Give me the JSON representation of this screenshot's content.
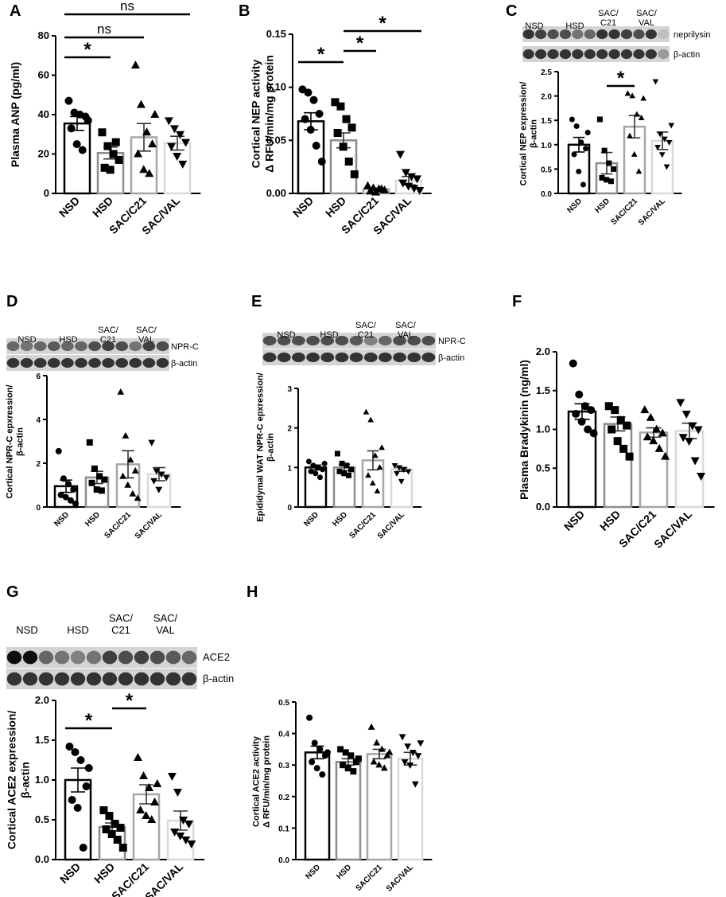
{
  "categories": [
    "NSD",
    "HSD",
    "SAC/C21",
    "SAC/VAL"
  ],
  "bar_colors": [
    "#000000",
    "#8c8c8c",
    "#a6a6a6",
    "#d9d9d9"
  ],
  "marker_shapes": [
    "circle",
    "square",
    "triangle-up",
    "triangle-down"
  ],
  "blot_headers": {
    "C": [
      "NSD",
      "HSD",
      "SAC/|C21",
      "SAC/|VAL"
    ],
    "D": [
      "NSD",
      "HSD",
      "SAC/|C21",
      "SAC/|VAL"
    ],
    "E": [
      "NSD",
      "HSD",
      "SAC/|C21",
      "SAC/|VAL"
    ],
    "G": [
      "NSD",
      "HSD",
      "SAC/|C21",
      "SAC/|VAL"
    ]
  },
  "blot_bands": {
    "C": [
      "neprilysin",
      "β-actin"
    ],
    "D": [
      "NPR-C",
      "β-actin"
    ],
    "E": [
      "NPR-C",
      "β-actin"
    ],
    "G": [
      "ACE2",
      "β-actin"
    ]
  },
  "chart_data": [
    {
      "panel": "A",
      "type": "bar",
      "ylabel": "Plasma ANP (pg/ml)",
      "ylim": [
        0,
        80
      ],
      "yticks": [
        0,
        20,
        40,
        60,
        80
      ],
      "means": [
        35.5,
        20.5,
        28.5,
        25.5
      ],
      "sem": [
        3.5,
        3,
        7,
        3.5
      ],
      "points": [
        [
          47,
          41,
          40,
          39,
          33,
          25,
          22,
          37
        ],
        [
          31,
          24,
          20,
          17,
          13,
          12,
          26
        ],
        [
          65,
          45,
          31,
          25,
          20,
          12,
          10,
          40
        ],
        [
          37,
          33,
          30,
          26,
          24,
          19,
          15
        ]
      ],
      "significance": [
        {
          "from": 0,
          "to": 1,
          "label": "*"
        },
        {
          "from": 0,
          "to": 2,
          "label": "ns"
        },
        {
          "from": 0,
          "to": 3,
          "label": "ns"
        }
      ]
    },
    {
      "panel": "B",
      "type": "bar",
      "ylabel": "Cortical NEP activity|Δ RFU/min/mg protein",
      "ylim": [
        0,
        0.15
      ],
      "yticks": [
        0,
        0.05,
        0.1,
        0.15
      ],
      "tick_format": "0.00",
      "means": [
        0.068,
        0.05,
        0.004,
        0.012
      ],
      "sem": [
        0.008,
        0.007,
        0.001,
        0.004
      ],
      "points": [
        [
          0.098,
          0.095,
          0.088,
          0.075,
          0.07,
          0.06,
          0.045,
          0.03
        ],
        [
          0.086,
          0.082,
          0.07,
          0.062,
          0.057,
          0.044,
          0.03,
          0.018
        ],
        [
          0.007,
          0.005,
          0.004,
          0.003,
          0.002,
          0.001,
          0.004
        ],
        [
          0.037,
          0.02,
          0.016,
          0.014,
          0.01,
          0.007,
          0.005,
          0.003
        ]
      ],
      "significance": [
        {
          "from": 0,
          "to": 1,
          "label": "*"
        },
        {
          "from": 1,
          "to": 2,
          "label": "*"
        },
        {
          "from": 1,
          "to": 3,
          "label": "*"
        }
      ]
    },
    {
      "panel": "C",
      "type": "bar",
      "ylabel": "Cortical NEP expression/|β-actin",
      "ylim": [
        0,
        2.5
      ],
      "yticks": [
        0,
        0.5,
        1,
        1.5,
        2,
        2.5
      ],
      "tick_format": "0.0",
      "means": [
        1.0,
        0.62,
        1.37,
        1.08
      ],
      "sem": [
        0.15,
        0.22,
        0.23,
        0.18
      ],
      "points": [
        [
          1.52,
          1.38,
          1.05,
          0.92,
          0.8,
          0.45,
          0.18,
          1.25
        ],
        [
          1.52,
          0.88,
          0.62,
          0.5,
          0.32,
          0.28,
          0.25
        ],
        [
          2.05,
          2.0,
          1.62,
          1.55,
          1.18,
          0.8,
          0.45,
          1.95
        ],
        [
          2.3,
          1.22,
          1.12,
          1.05,
          0.95,
          0.8,
          0.55,
          1.4
        ]
      ],
      "significance": [
        {
          "from": 1,
          "to": 2,
          "label": "*"
        }
      ]
    },
    {
      "panel": "D",
      "type": "bar",
      "ylabel": "Cortical NPR-C epxression/|β-actin",
      "ylim": [
        0,
        6
      ],
      "yticks": [
        0,
        2,
        4,
        6
      ],
      "means": [
        0.95,
        1.35,
        1.95,
        1.5
      ],
      "sem": [
        0.28,
        0.28,
        0.62,
        0.3
      ],
      "points": [
        [
          2.55,
          1.3,
          1.05,
          0.8,
          0.55,
          0.45,
          0.3,
          0.15
        ],
        [
          2.95,
          1.75,
          1.4,
          1.25,
          1.1,
          0.8,
          0.75
        ],
        [
          5.25,
          3.25,
          2.15,
          1.65,
          1.4,
          1.0,
          0.6,
          0.4
        ],
        [
          2.95,
          1.65,
          1.5,
          1.35,
          1.2,
          0.8
        ]
      ],
      "significance": []
    },
    {
      "panel": "E",
      "type": "bar",
      "ylabel": "Epididymal WAT NPR-C epxression/|β-actin",
      "ylim": [
        0,
        3
      ],
      "yticks": [
        0,
        1,
        2,
        3
      ],
      "means": [
        1.0,
        1.0,
        1.18,
        0.95
      ],
      "sem": [
        0.06,
        0.08,
        0.24,
        0.05
      ],
      "points": [
        [
          1.15,
          1.05,
          1.0,
          0.95,
          0.9,
          0.85,
          0.75,
          1.1
        ],
        [
          1.35,
          1.1,
          1.05,
          0.95,
          0.9,
          0.85,
          0.8
        ],
        [
          2.4,
          2.2,
          1.3,
          1.0,
          0.8,
          0.6,
          0.4,
          1.5
        ],
        [
          1.05,
          1.0,
          0.95,
          0.9,
          0.85,
          0.65
        ]
      ],
      "significance": []
    },
    {
      "panel": "F",
      "type": "bar",
      "ylabel": "Plasma Bradykinin (ng/ml)",
      "ylim": [
        0,
        2.0
      ],
      "yticks": [
        0,
        0.5,
        1,
        1.5,
        2
      ],
      "tick_format": "0.0",
      "means": [
        1.23,
        1.07,
        0.96,
        0.98
      ],
      "sem": [
        0.1,
        0.09,
        0.06,
        0.1
      ],
      "points": [
        [
          1.85,
          1.45,
          1.3,
          1.25,
          1.2,
          1.1,
          1.0,
          0.95
        ],
        [
          1.3,
          1.25,
          1.12,
          1.05,
          1.0,
          0.85,
          0.75,
          0.65
        ],
        [
          1.25,
          1.15,
          1.0,
          0.95,
          0.9,
          0.85,
          0.75,
          0.65
        ],
        [
          1.35,
          1.2,
          1.05,
          1.0,
          0.9,
          0.85,
          0.6,
          0.4
        ]
      ],
      "significance": []
    },
    {
      "panel": "G",
      "type": "bar",
      "ylabel": "Cortical ACE2 expression/|β-actin",
      "ylim": [
        0,
        2.0
      ],
      "yticks": [
        0,
        0.5,
        1,
        1.5,
        2
      ],
      "tick_format": "0.0",
      "means": [
        1.0,
        0.41,
        0.82,
        0.49
      ],
      "sem": [
        0.15,
        0.05,
        0.12,
        0.12
      ],
      "points": [
        [
          1.42,
          1.35,
          1.25,
          0.92,
          0.75,
          0.65,
          0.15,
          1.15
        ],
        [
          0.62,
          0.55,
          0.45,
          0.4,
          0.38,
          0.32,
          0.25,
          0.15
        ],
        [
          1.28,
          1.05,
          0.9,
          0.72,
          0.62,
          0.55,
          0.5,
          0.95
        ],
        [
          1.05,
          0.85,
          0.5,
          0.45,
          0.35,
          0.3,
          0.25,
          0.2
        ]
      ],
      "significance": [
        {
          "from": 0,
          "to": 1,
          "label": "*"
        },
        {
          "from": 1,
          "to": 2,
          "label": "*"
        }
      ]
    },
    {
      "panel": "H",
      "type": "bar",
      "ylabel": "Cortical ACE2 activity|Δ RFU/min/mg protein",
      "ylim": [
        0,
        0.5
      ],
      "yticks": [
        0,
        0.1,
        0.2,
        0.3,
        0.4,
        0.5
      ],
      "tick_format": "0.0",
      "means": [
        0.34,
        0.31,
        0.335,
        0.32
      ],
      "sem": [
        0.02,
        0.01,
        0.015,
        0.02
      ],
      "points": [
        [
          0.45,
          0.37,
          0.35,
          0.33,
          0.31,
          0.29,
          0.27,
          0.34
        ],
        [
          0.35,
          0.34,
          0.33,
          0.31,
          0.3,
          0.29,
          0.28,
          0.32
        ],
        [
          0.42,
          0.37,
          0.35,
          0.33,
          0.31,
          0.3,
          0.29,
          0.34
        ],
        [
          0.39,
          0.36,
          0.34,
          0.33,
          0.31,
          0.3,
          0.24,
          0.37
        ]
      ],
      "significance": []
    }
  ]
}
